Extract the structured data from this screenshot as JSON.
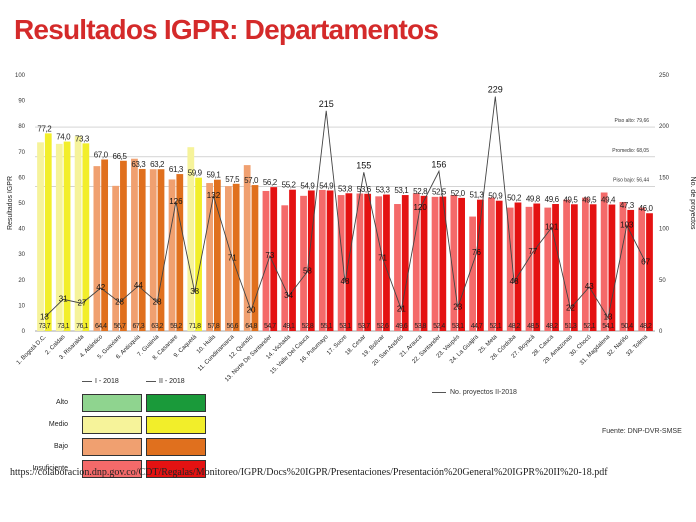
{
  "title": "Resultados IGPR: Departamentos",
  "source_note": "Fuente: DNP-DVR-SMSE",
  "footer_url": "https://colaboracion.dnp.gov.co/CDT/Regalas/Monitoreo/IGPR/Docs%20IGPR/Presentaciones/Presentación%20General%20IGPR%20II%20-18.pdf",
  "line_legend": "No. proyectos II-2018",
  "legend": {
    "headers": [
      "I - 2018",
      "II - 2018"
    ],
    "rows": [
      {
        "label": "Alto",
        "color_light": "#8fd48f",
        "color_dark": "#1a9a3a"
      },
      {
        "label": "Medio",
        "color_light": "#f6f39a",
        "color_dark": "#f2ee2a"
      },
      {
        "label": "Bajo",
        "color_light": "#f0a070",
        "color_dark": "#e0701e"
      },
      {
        "label": "Insuficiente",
        "color_light": "#f46a6a",
        "color_dark": "#e41212"
      }
    ]
  },
  "colors": {
    "medio_light": "#f6f39a",
    "medio_dark": "#f2ee2a",
    "bajo_light": "#f0a070",
    "bajo_dark": "#e0701e",
    "insuf_light": "#f46a6a",
    "insuf_dark": "#e41212"
  },
  "chart_data": {
    "type": "bar",
    "ylabel": "Resultados IGPR",
    "y2label": "No. de proyectos",
    "ylim": [
      0,
      100
    ],
    "y2lim": [
      0,
      250
    ],
    "yticks": [
      0,
      10,
      20,
      30,
      40,
      50,
      60,
      70,
      80,
      90,
      100
    ],
    "y2ticks": [
      0,
      50,
      100,
      150,
      200,
      250
    ],
    "reference_lines": [
      {
        "label": "Piso alto: 79,66",
        "value": 79.66
      },
      {
        "label": "Promedio: 68,05",
        "value": 68.05
      },
      {
        "label": "Piso bajo: 56,44",
        "value": 56.44
      }
    ],
    "categories": [
      "1. Bogotá D.C.",
      "2. Caldas",
      "3. Risaralda",
      "4. Atlántico",
      "5. Guaviare",
      "6. Antioquia",
      "7. Guainía",
      "8. Casanare",
      "9. Caquetá",
      "10. Huila",
      "11. Cundinamarca",
      "12. Quindío",
      "13. Norte De Santander",
      "14. Vichada",
      "15. Valle Del Cauca",
      "16. Putumayo",
      "17. Sucre",
      "18. Cesar",
      "19. Bolívar",
      "20. San Andrés",
      "21. Arauca",
      "22. Santander",
      "23. Vaupés",
      "24. La Guajira",
      "25. Meta",
      "26. Córdoba",
      "27. Boyacá",
      "28. Cauca",
      "29. Amazonas",
      "30. Chocó",
      "31. Magdalena",
      "32. Nariño",
      "33. Tolima"
    ],
    "series": [
      {
        "name": "I - 2018",
        "values": [
          73.7,
          73.1,
          76.1,
          64.4,
          56.7,
          67.3,
          63.2,
          59.2,
          71.8,
          57.8,
          56.6,
          64.8,
          54.7,
          49.1,
          52.8,
          55.1,
          53.1,
          53.7,
          52.6,
          49.6,
          53.8,
          52.4,
          53.1,
          44.7,
          52.1,
          48.2,
          48.5,
          48.2,
          51.3,
          52.1,
          54.1,
          50.4,
          48.2
        ],
        "labels": [
          "73,7",
          "73,1",
          "76,1",
          "64,4",
          "56,7",
          "67,3",
          "63,2",
          "59,2",
          "71,8",
          "57,8",
          "56,6",
          "64,8",
          "54,7",
          "49,1",
          "52,8",
          "55,1",
          "53,1",
          "53,7",
          "52,6",
          "49,6",
          "53,8",
          "52,4",
          "53,1",
          "44,7",
          "52,1",
          "48,2",
          "48,5",
          "48,2",
          "51,3",
          "52,1",
          "54,1",
          "50,4",
          "48,2"
        ]
      },
      {
        "name": "II - 2018",
        "values": [
          77.2,
          74.0,
          73.3,
          67.0,
          66.5,
          63.3,
          63.2,
          61.3,
          59.9,
          59.1,
          57.5,
          57.0,
          56.2,
          55.2,
          54.9,
          54.9,
          53.8,
          53.6,
          53.3,
          53.1,
          52.8,
          52.5,
          52.0,
          51.3,
          50.9,
          50.2,
          49.8,
          49.6,
          49.5,
          49.5,
          49.4,
          47.3,
          46.0
        ],
        "labels": [
          "77,2",
          "74,0",
          "73,3",
          "67,0",
          "66,5",
          "63,3",
          "63,2",
          "61,3",
          "59,9",
          "59,1",
          "57,5",
          "57,0",
          "56,2",
          "55,2",
          "54,9",
          "54,9",
          "53,8",
          "53,6",
          "53,3",
          "53,1",
          "52,8",
          "52,5",
          "52,0",
          "51,3",
          "50,9",
          "50,2",
          "49,8",
          "49,6",
          "49,5",
          "49,5",
          "49,4",
          "47,3",
          "46,0"
        ]
      },
      {
        "name": "No. proyectos II-2018",
        "values": [
          13,
          31,
          27,
          42,
          28,
          44,
          28,
          126,
          38,
          132,
          71,
          20,
          73,
          34,
          58,
          215,
          48,
          155,
          71,
          21,
          120,
          156,
          23,
          76,
          229,
          48,
          77,
          101,
          22,
          43,
          13,
          103,
          67
        ],
        "labels": [
          "13",
          "31",
          "27",
          "42",
          "28",
          "44",
          "28",
          "126",
          "38",
          "132",
          "71",
          "20",
          "73",
          "34",
          "58",
          "215",
          "48",
          "155",
          "71",
          "21",
          "120",
          "156",
          "23",
          "76",
          "229",
          "48",
          "77",
          "101",
          "22",
          "43",
          "13",
          "103",
          "67"
        ]
      }
    ],
    "category_levels": [
      "medio",
      "medio",
      "medio",
      "bajo",
      "bajo",
      "bajo",
      "bajo",
      "bajo",
      "medio",
      "bajo",
      "bajo",
      "bajo",
      "insuf",
      "insuf",
      "insuf",
      "insuf",
      "insuf",
      "insuf",
      "insuf",
      "insuf",
      "insuf",
      "insuf",
      "insuf",
      "insuf",
      "insuf",
      "insuf",
      "insuf",
      "insuf",
      "insuf",
      "insuf",
      "insuf",
      "insuf",
      "insuf"
    ],
    "grid": false,
    "legend_position": "bottom-left"
  }
}
